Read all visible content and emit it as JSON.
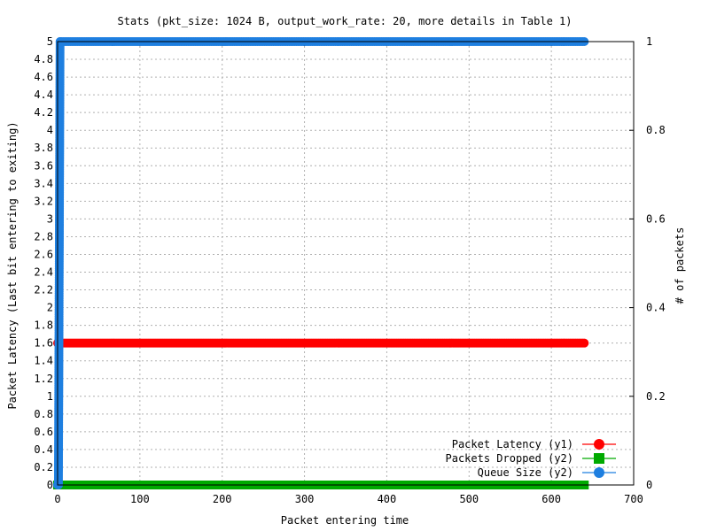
{
  "chart_data": {
    "type": "line",
    "title": "Stats (pkt_size: 1024 B, output_work_rate: 20, more details in Table 1)",
    "xlabel": "Packet entering time",
    "ylabel": "Packet Latency (Last bit entering to exiting)",
    "y2label": "# of packets",
    "xlim": [
      0,
      700
    ],
    "ylim": [
      0,
      5
    ],
    "y2lim": [
      0,
      1
    ],
    "x_ticks": [
      0,
      100,
      200,
      300,
      400,
      500,
      600,
      700
    ],
    "y_ticks": [
      0,
      0.2,
      0.4,
      0.6,
      0.8,
      1,
      1.2,
      1.4,
      1.6,
      1.8,
      2,
      2.2,
      2.4,
      2.6,
      2.8,
      3,
      3.2,
      3.4,
      3.6,
      3.8,
      4,
      4.2,
      4.4,
      4.6,
      4.8,
      5
    ],
    "y2_ticks": [
      0,
      0.2,
      0.4,
      0.6,
      0.8,
      1
    ],
    "grid": true,
    "legend_position": "bottom-right",
    "series": [
      {
        "name": "Packet Latency (y1)",
        "axis": "y1",
        "color": "#ff0000",
        "marker": "circle",
        "x": [
          0,
          640
        ],
        "y": [
          1.6,
          1.6
        ]
      },
      {
        "name": "Packets Dropped (y2)",
        "axis": "y2",
        "color": "#00aa00",
        "marker": "square",
        "x": [
          0,
          640
        ],
        "y": [
          0,
          0
        ]
      },
      {
        "name": "Queue Size (y2)",
        "axis": "y2",
        "color": "#1e7fe0",
        "marker": "circle",
        "x": [
          0,
          1,
          3,
          640
        ],
        "y": [
          0,
          0,
          1,
          1
        ]
      }
    ]
  }
}
